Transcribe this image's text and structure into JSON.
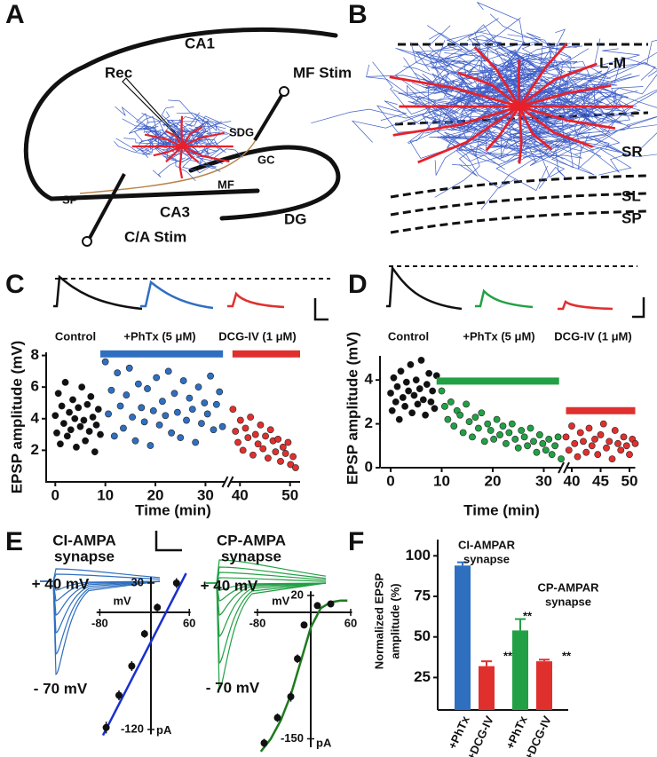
{
  "panel_a": {
    "letter": "A",
    "labels": [
      "CA1",
      "Rec",
      "MF Stim",
      "SDG",
      "GC",
      "MF",
      "SP",
      "CA3",
      "DG",
      "C/A Stim"
    ]
  },
  "panel_b": {
    "letter": "B",
    "labels": [
      "L-M",
      "SR",
      "SL",
      "SP"
    ]
  },
  "chart_data": [
    {
      "type": "scatter",
      "panel": "C",
      "trace_labels": [
        "Control",
        "+PhTx (5 μM)",
        "DCG-IV (1 μM)"
      ],
      "xlabel": "Time (min)",
      "ylabel": "EPSP amplitude (mV)",
      "ylim": [
        0,
        8.2
      ],
      "yticks": [
        2,
        4,
        6,
        8
      ],
      "xsegments": [
        [
          -2,
          34
        ],
        [
          38,
          52
        ]
      ],
      "xticks": [
        0,
        10,
        20,
        30,
        40,
        50
      ],
      "series": [
        {
          "color": "#111111",
          "x": [
            0,
            0.3,
            0.6,
            1,
            1.3,
            1.7,
            2,
            2.4,
            2.8,
            3.1,
            3.5,
            3.9,
            4.2,
            4.6,
            5,
            5.3,
            5.7,
            6,
            6.4,
            6.8,
            7.1,
            7.5,
            7.9,
            8.2,
            8.6,
            9
          ],
          "values": [
            4.2,
            3.1,
            5.6,
            2.4,
            4.8,
            3.7,
            6.3,
            2.9,
            4.4,
            3.3,
            5.2,
            4.0,
            2.2,
            4.7,
            3.5,
            6.0,
            3.9,
            2.6,
            4.9,
            3.2,
            5.4,
            4.1,
            1.9,
            3.6,
            4.6,
            3.0
          ]
        },
        {
          "color": "#2f6fbf",
          "x": [
            10,
            10.6,
            11.2,
            11.8,
            12.4,
            13,
            13.6,
            14.2,
            14.8,
            15.4,
            16,
            16.6,
            17.2,
            17.8,
            18.4,
            19,
            19.6,
            20.2,
            20.8,
            21.4,
            22,
            22.6,
            23.2,
            23.8,
            24.4,
            25,
            25.6,
            26.2,
            26.8,
            27.4,
            28,
            28.6,
            29.2,
            29.8,
            30.4,
            31,
            31.6,
            32.2,
            32.8,
            33.4
          ],
          "values": [
            7.6,
            4.3,
            5.8,
            2.9,
            6.9,
            4.8,
            3.4,
            5.5,
            7.2,
            4.1,
            2.6,
            6.2,
            4.7,
            3.8,
            5.9,
            2.3,
            4.5,
            6.6,
            3.6,
            5.1,
            4.2,
            7.0,
            3.1,
            5.6,
            4.4,
            2.8,
            6.4,
            3.9,
            5.3,
            4.6,
            2.5,
            6.0,
            3.7,
            5.0,
            4.3,
            6.7,
            3.3,
            4.9,
            5.7,
            3.5
          ]
        },
        {
          "color": "#e0302e",
          "x": [
            38.6,
            39.1,
            39.6,
            40.1,
            40.6,
            41.1,
            41.6,
            42.1,
            42.6,
            43.1,
            43.6,
            44.1,
            44.6,
            45.1,
            45.6,
            46.1,
            46.6,
            47.1,
            47.6,
            48.1,
            48.6,
            49.1,
            49.6,
            50.1,
            50.6,
            51.1
          ],
          "values": [
            4.6,
            3.2,
            2.5,
            3.9,
            2.0,
            3.4,
            2.8,
            4.1,
            1.7,
            3.0,
            2.4,
            3.6,
            2.1,
            2.9,
            1.5,
            3.3,
            2.6,
            1.9,
            2.7,
            1.3,
            2.2,
            1.8,
            2.5,
            1.1,
            1.6,
            0.9
          ]
        }
      ],
      "bars": [
        {
          "color": "#2f6fbf",
          "x": [
            9,
            33.5
          ],
          "value": 8.1
        },
        {
          "color": "#e0302e",
          "x": [
            38.5,
            52
          ],
          "value": 8.1
        }
      ]
    },
    {
      "type": "scatter",
      "panel": "D",
      "trace_labels": [
        "Control",
        "+PhTx (5 μM)",
        "DCG-IV (1 μM)"
      ],
      "xlabel": "Time (min)",
      "ylabel": "EPSP amplitude (mV)",
      "ylim": [
        0,
        5.1
      ],
      "yticks": [
        0,
        2,
        4
      ],
      "xsegments": [
        [
          -2,
          33.5
        ],
        [
          39,
          51
        ]
      ],
      "xticks": [
        0,
        10,
        20,
        30,
        40,
        45,
        50
      ],
      "series": [
        {
          "color": "#111111",
          "x": [
            0,
            0.3,
            0.6,
            1,
            1.3,
            1.7,
            2,
            2.4,
            2.8,
            3.1,
            3.5,
            3.9,
            4.2,
            4.6,
            5,
            5.3,
            5.7,
            6,
            6.4,
            6.8,
            7.1,
            7.5,
            7.9,
            8.2,
            8.6,
            9
          ],
          "values": [
            3.4,
            2.6,
            4.1,
            3.0,
            3.7,
            2.2,
            4.4,
            3.2,
            2.8,
            3.9,
            3.5,
            4.7,
            2.5,
            3.3,
            4.0,
            2.9,
            3.6,
            4.9,
            3.1,
            2.4,
            3.8,
            4.3,
            3.0,
            3.5,
            2.7,
            4.2
          ]
        },
        {
          "color": "#22a045",
          "x": [
            10,
            10.6,
            11.2,
            11.8,
            12.4,
            13,
            13.6,
            14.2,
            14.8,
            15.4,
            16,
            16.6,
            17.2,
            17.8,
            18.4,
            19,
            19.6,
            20.2,
            20.8,
            21.4,
            22,
            22.6,
            23.2,
            23.8,
            24.4,
            25,
            25.6,
            26.2,
            26.8,
            27.4,
            28,
            28.6,
            29.2,
            29.8,
            30.4,
            31,
            31.6,
            32.2,
            32.8,
            33.4
          ],
          "values": [
            3.5,
            2.8,
            2.2,
            3.0,
            1.9,
            2.6,
            2.4,
            1.6,
            2.9,
            2.1,
            1.4,
            2.3,
            1.8,
            2.5,
            1.2,
            2.0,
            1.7,
            1.3,
            2.2,
            1.5,
            1.9,
            1.1,
            1.6,
            2.0,
            1.3,
            0.9,
            1.7,
            1.4,
            1.0,
            1.8,
            1.2,
            0.7,
            1.5,
            1.1,
            0.8,
            1.3,
            0.6,
            1.0,
            1.4,
            0.4
          ]
        },
        {
          "color": "#e0302e",
          "x": [
            39,
            39.5,
            40,
            40.5,
            41,
            41.5,
            42,
            42.5,
            43,
            43.5,
            44,
            44.5,
            45,
            45.5,
            46,
            46.5,
            47,
            47.5,
            48,
            48.5,
            49,
            49.5,
            50,
            50.5,
            51
          ],
          "values": [
            1.4,
            0.8,
            1.9,
            1.1,
            0.5,
            1.6,
            1.2,
            0.7,
            1.8,
            1.0,
            1.3,
            0.6,
            1.5,
            2.0,
            0.9,
            1.2,
            0.4,
            1.7,
            1.1,
            0.8,
            1.4,
            1.0,
            0.6,
            1.3,
            1.1
          ]
        }
      ],
      "bars": [
        {
          "color": "#22a045",
          "x": [
            9,
            33
          ],
          "value": 3.95
        },
        {
          "color": "#e0302e",
          "x": [
            39,
            51
          ],
          "value": 2.6
        }
      ]
    },
    {
      "type": "iv",
      "panel": "E",
      "title_lines": [
        "CI-AMPA",
        "synapse"
      ],
      "trace_labels": [
        "+ 40 mV",
        "- 70 mV"
      ],
      "xlabel": "mV",
      "ylabel": "pA",
      "xlim": [
        -85,
        62
      ],
      "ylim": [
        -125,
        36
      ],
      "xticks": [
        -80,
        60
      ],
      "yticks": [
        30,
        -120
      ],
      "points": {
        "color": "#111111",
        "x": [
          -70,
          -50,
          -30,
          -10,
          10,
          40
        ],
        "values": [
          -118,
          -85,
          -55,
          -22,
          5,
          30
        ],
        "errors": [
          6,
          5,
          5,
          4,
          4,
          5
        ]
      },
      "fit": {
        "color": "#1a2fd0",
        "x": [
          -75,
          55
        ],
        "values": [
          -126,
          40
        ]
      }
    },
    {
      "type": "iv",
      "title_lines": [
        "CP-AMPA",
        "synapse"
      ],
      "trace_labels": [
        "+ 40 mV",
        "- 70 mV"
      ],
      "xlabel": "mV",
      "ylabel": "pA",
      "xlim": [
        -85,
        62
      ],
      "ylim": [
        -160,
        25
      ],
      "xticks": [
        -80,
        60
      ],
      "yticks": [
        20,
        -150
      ],
      "points": {
        "color": "#111111",
        "x": [
          -70,
          -50,
          -30,
          -20,
          -10,
          10,
          30
        ],
        "values": [
          -155,
          -125,
          -100,
          -55,
          -15,
          8,
          10
        ],
        "errors": [
          5,
          5,
          6,
          5,
          4,
          3,
          3
        ]
      },
      "fit": {
        "color": "#1f7a1f",
        "x": [
          -75,
          -60,
          -45,
          -30,
          -15,
          0,
          15,
          30,
          45,
          55
        ],
        "values": [
          -165,
          -150,
          -128,
          -98,
          -58,
          -18,
          5,
          12,
          14,
          14
        ]
      }
    },
    {
      "type": "bar",
      "panel": "F",
      "ylabel_lines": [
        "Normalized EPSP",
        "amplitude (%)"
      ],
      "group_labels": [
        [
          "CI-AMPAR",
          "synapse"
        ],
        [
          "CP-AMPAR",
          "synapse"
        ]
      ],
      "categories": [
        "+PhTx",
        "+DCG-IV",
        "+PhTx",
        "+DCG-IV"
      ],
      "values": [
        94,
        32,
        54,
        35
      ],
      "errors": [
        2,
        3,
        7,
        1
      ],
      "colors": [
        "#2f6fbf",
        "#e0302e",
        "#22a045",
        "#e0302e"
      ],
      "annotations": [
        "**",
        "**",
        "**"
      ],
      "ylim": [
        5,
        110
      ],
      "yticks": [
        25,
        50,
        75,
        100
      ]
    }
  ]
}
